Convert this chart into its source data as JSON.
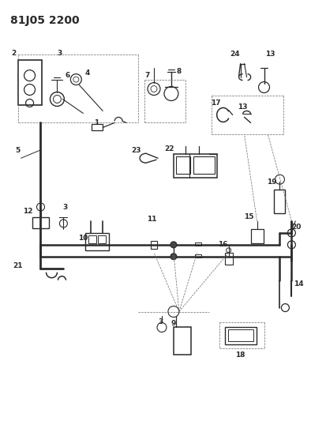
{
  "title": "81J05 2200",
  "bg_color": "#ffffff",
  "lc": "#2a2a2a",
  "dc": "#666666",
  "title_fontsize": 10,
  "label_fontsize": 6.5,
  "fig_width": 3.94,
  "fig_height": 5.33,
  "dpi": 100
}
